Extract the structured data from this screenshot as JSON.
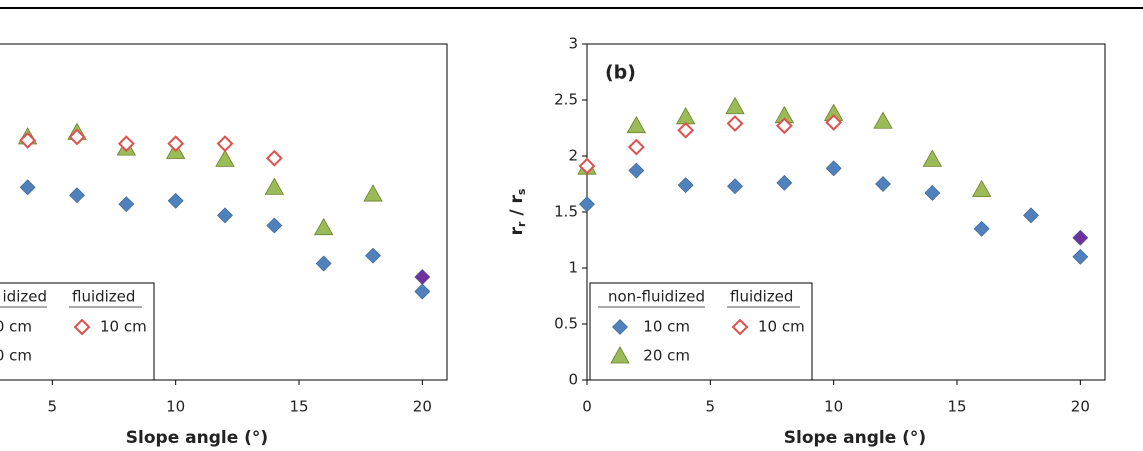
{
  "chart_data": [
    {
      "type": "scatter",
      "xlabel": "Slope angle (°)",
      "xlim": [
        0,
        21
      ],
      "ylim": [
        0,
        3
      ],
      "xticks": [
        5,
        10,
        15,
        20
      ],
      "legend_headers": [
        "idized",
        "fluidized"
      ],
      "series": [
        {
          "name": "0 cm",
          "color": "#4f81bd",
          "marker": "diamond",
          "x": [
            4,
            6,
            8,
            10,
            12,
            14,
            16,
            18,
            20
          ],
          "values": [
            1.72,
            1.65,
            1.57,
            1.6,
            1.47,
            1.38,
            1.04,
            1.11,
            0.79
          ]
        },
        {
          "name": "0 cm",
          "color": "#9bbb59",
          "marker": "triangle",
          "x": [
            4,
            6,
            8,
            10,
            12,
            14,
            16,
            18
          ],
          "values": [
            2.17,
            2.21,
            2.07,
            2.04,
            1.97,
            1.72,
            1.36,
            1.66
          ]
        },
        {
          "name": "10 cm",
          "color": "#e0504d",
          "marker": "open-diamond",
          "x": [
            4,
            6,
            8,
            10,
            12,
            14
          ],
          "values": [
            2.14,
            2.17,
            2.11,
            2.11,
            2.11,
            1.98
          ]
        },
        {
          "color": "#7030a0",
          "marker": "diamond",
          "x": [
            20
          ],
          "values": [
            0.92
          ]
        }
      ]
    },
    {
      "type": "scatter",
      "panel_label": "(b)",
      "xlabel": "Slope angle (°)",
      "ylabel": [
        "r",
        "r",
        " / r",
        "s"
      ],
      "xlim": [
        0,
        21
      ],
      "ylim": [
        0,
        3
      ],
      "xticks": [
        0,
        5,
        10,
        15,
        20
      ],
      "yticks": [
        0,
        0.5,
        1,
        1.5,
        2,
        2.5,
        3
      ],
      "legend_headers": [
        "non-fluidized",
        "fluidized"
      ],
      "series": [
        {
          "name": "10 cm",
          "color": "#4f81bd",
          "marker": "diamond",
          "x": [
            0,
            2,
            4,
            6,
            8,
            10,
            12,
            14,
            16,
            18,
            20
          ],
          "values": [
            1.57,
            1.87,
            1.74,
            1.73,
            1.76,
            1.89,
            1.75,
            1.67,
            1.35,
            1.47,
            1.1
          ]
        },
        {
          "name": "20 cm",
          "color": "#9bbb59",
          "marker": "triangle",
          "x": [
            0,
            2,
            4,
            6,
            8,
            10,
            12,
            14,
            16
          ],
          "values": [
            1.9,
            2.27,
            2.35,
            2.44,
            2.36,
            2.38,
            2.31,
            1.97,
            1.7
          ]
        },
        {
          "name": "10 cm",
          "color": "#e0504d",
          "marker": "open-diamond",
          "x": [
            0,
            2,
            4,
            6,
            8,
            10
          ],
          "values": [
            1.91,
            2.08,
            2.23,
            2.29,
            2.27,
            2.3
          ]
        },
        {
          "color": "#7030a0",
          "marker": "diamond",
          "x": [
            20
          ],
          "values": [
            1.27
          ]
        }
      ]
    }
  ]
}
